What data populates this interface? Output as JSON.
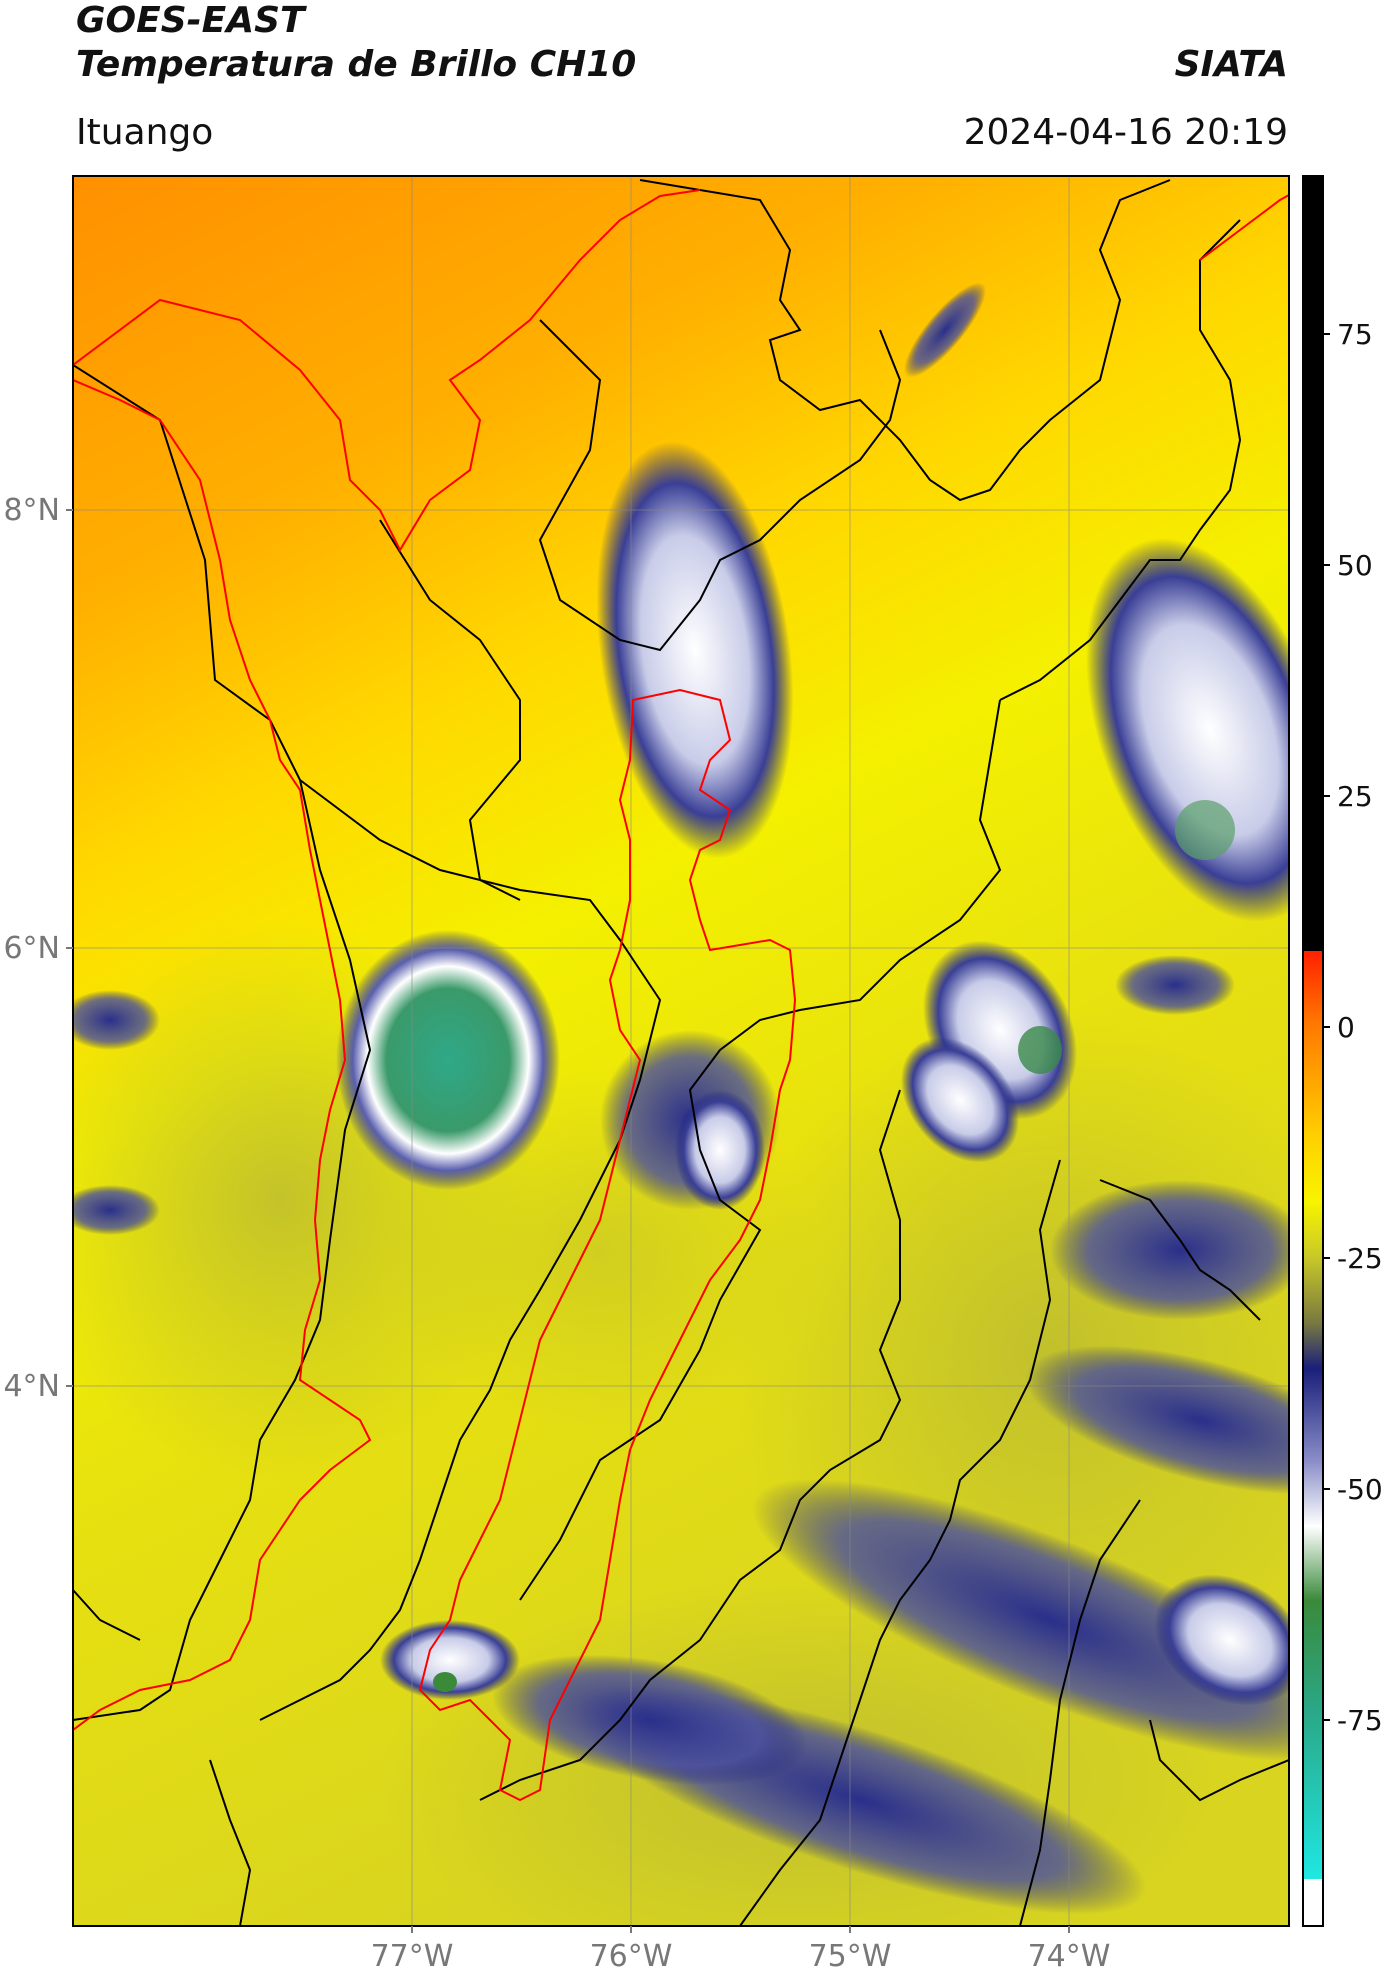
{
  "header": {
    "satellite": "GOES-EAST",
    "product": "Temperatura de Brillo CH10",
    "brand": "SIATA",
    "location": "Ituango",
    "datetime": "2024-04-16 20:19"
  },
  "map": {
    "lat_labels": [
      "8°N",
      "6°N",
      "4°N"
    ],
    "lon_labels": [
      "77°W",
      "76°W",
      "75°W",
      "74°W"
    ],
    "colors": {
      "warm_orange": "#ff9a00",
      "yellow": "#f2f20a",
      "olive": "#c8c832",
      "navy": "#1a1f7a",
      "white": "#ffffff",
      "green": "#3aa070",
      "boundary_black": "#000000",
      "boundary_red": "#ff0000"
    }
  },
  "colorbar": {
    "ticks": [
      "75",
      "50",
      "25",
      "0",
      "-25",
      "-50",
      "-75"
    ]
  }
}
